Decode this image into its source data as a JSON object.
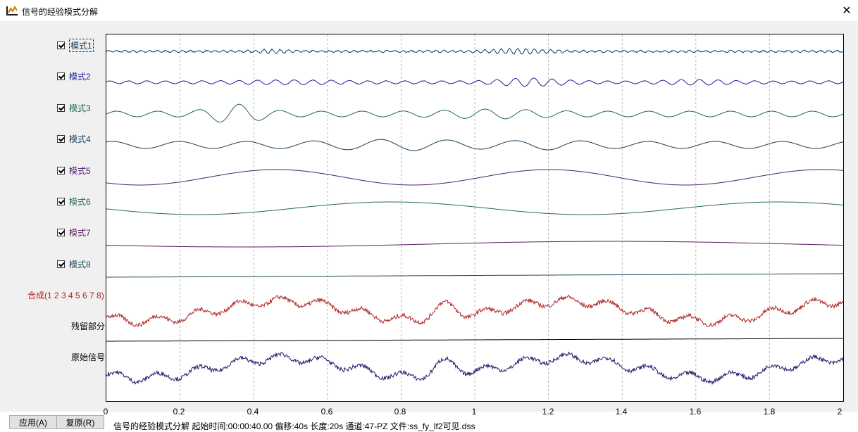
{
  "window": {
    "title": "信号的经验模式分解"
  },
  "modes": [
    {
      "label": "模式1",
      "color": "#0b3d5c",
      "checked": true
    },
    {
      "label": "模式2",
      "color": "#1f1f9a",
      "checked": true
    },
    {
      "label": "模式3",
      "color": "#1f6b4a",
      "checked": true
    },
    {
      "label": "模式4",
      "color": "#1b3e57",
      "checked": true
    },
    {
      "label": "模式5",
      "color": "#4b1f6b",
      "checked": true
    },
    {
      "label": "模式6",
      "color": "#2a6b4f",
      "checked": true
    },
    {
      "label": "模式7",
      "color": "#5a1f5e",
      "checked": true
    },
    {
      "label": "模式8",
      "color": "#1f4a57",
      "checked": true
    }
  ],
  "composite": {
    "label": "合成(1 2 3 4 5 6 7 8)",
    "color": "#b22222"
  },
  "residual": {
    "label": "残留部分",
    "color": "#000000"
  },
  "original": {
    "label": "原始信号",
    "color": "#1a1a6b"
  },
  "chart_data": {
    "type": "line",
    "xlim": [
      0,
      2
    ],
    "x_ticks": [
      "0",
      "0.2",
      "0.4",
      "0.6",
      "0.8",
      "1",
      "1.2",
      "1.4",
      "1.6",
      "1.8",
      "2"
    ],
    "grid": true
  },
  "buttons": {
    "apply": "应用(A)",
    "reset": "复原(R)"
  },
  "status": "信号的经验模式分解  起始时间:00:00:40.00  偏移:40s  长度:20s  通道:47-PZ  文件:ss_fy_lf2可见.dss"
}
